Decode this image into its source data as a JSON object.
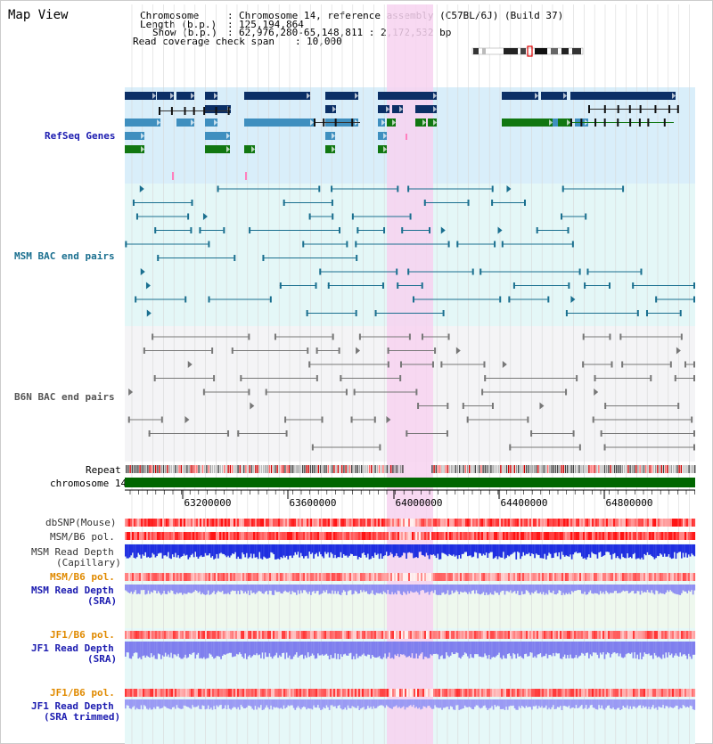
{
  "header": {
    "title": "Map View",
    "chromosome_key": "Chromosome",
    "chromosome_val": "Chromosome 14, reference assembly (C57BL/6J) (Build 37)",
    "length_key": "Length (b.p.)",
    "length_val": "125,194,864",
    "show_key": "Show (b.p.)",
    "show_val": "62,976,280-65,148,811 : 2,172,532 bp",
    "coverage_key": "Read coverage check span",
    "coverage_val": "10,000"
  },
  "tracks": {
    "refseq": "RefSeq Genes",
    "msm_bac": "MSM BAC end pairs",
    "b6n_bac": "B6N BAC end pairs",
    "repeat": "Repeat",
    "chromosome": "chromosome 14",
    "dbsnp": "dbSNP(Mouse)",
    "msm_b6_pol": "MSM/B6 pol.",
    "msm_depth_cap_1": "MSM Read Depth",
    "msm_depth_cap_2": "(Capillary)",
    "msm_b6_pol_2": "MSM/B6 pol.",
    "msm_depth_sra_1": "MSM Read Depth",
    "msm_depth_sra_2": "(SRA)",
    "jf1_b6_pol": "JF1/B6 pol.",
    "jf1_depth_sra_1": "JF1 Read Depth",
    "jf1_depth_sra_2": "(SRA)",
    "jf1_b6_pol_2": "JF1/B6 pol.",
    "jf1_depth_trim_1": "JF1 Read Depth",
    "jf1_depth_trim_2": "(SRA trimmed)"
  },
  "axis": {
    "ticks": [
      "63200000",
      "63600000",
      "64000000",
      "64400000",
      "64800000"
    ]
  },
  "colors": {
    "refseq_dark": "#0b2f66",
    "refseq_mid": "#3f8fbf",
    "refseq_green": "#117711",
    "msm_color": "#1a6f8f",
    "b6n_color": "#777777",
    "highlight": "#f7d2f0",
    "msm_bg": "#e4f7f7",
    "refseq_bg": "#d9eefa",
    "chromosome_bar": "#006600",
    "depth_blue": "#1f2ee0",
    "depth_light": "#8f8ff2",
    "label_blue": "#1c1cb0",
    "label_orange": "#e08a00"
  }
}
